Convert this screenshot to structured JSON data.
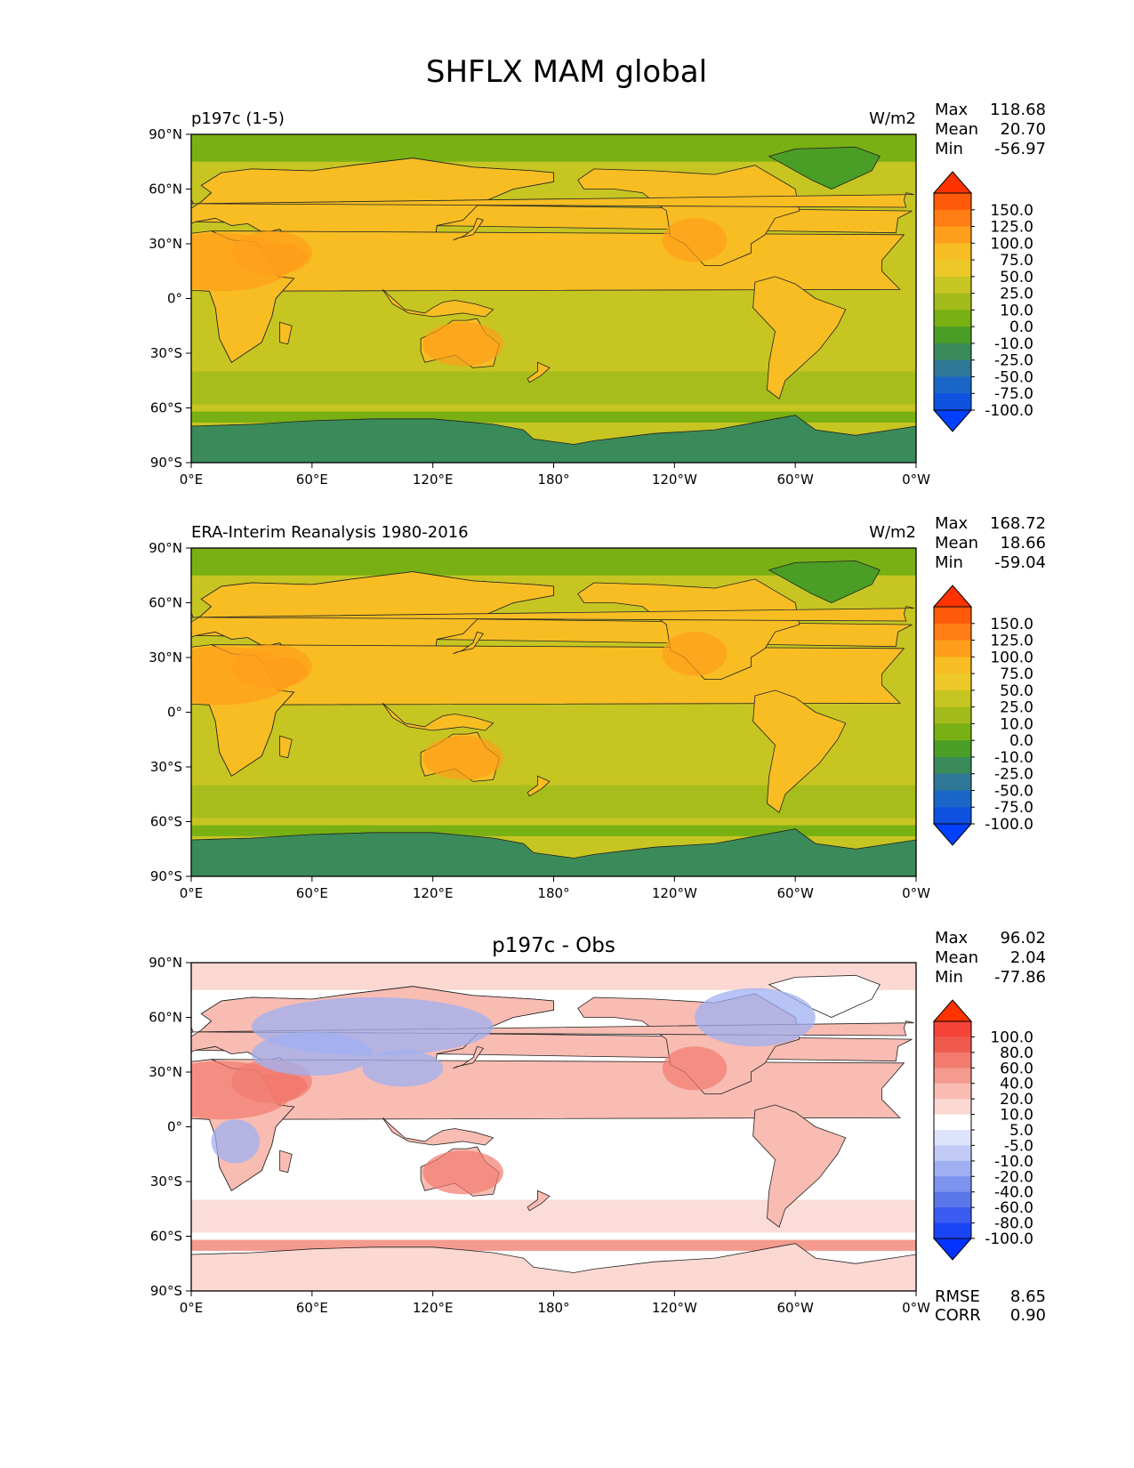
{
  "figure": {
    "title": "SHFLX MAM global"
  },
  "panels": [
    {
      "id": "test",
      "left_label": "p197c (1-5)",
      "center_title": "",
      "units": "W/m2",
      "stats": [
        {
          "label": "Max",
          "value": "118.68"
        },
        {
          "label": "Mean",
          "value": "20.70"
        },
        {
          "label": "Min",
          "value": "-56.97"
        }
      ],
      "extra_stats": [],
      "colorbar": {
        "labels": [
          "150.0",
          "125.0",
          "100.0",
          "75.0",
          "50.0",
          "25.0",
          "10.0",
          "0.0",
          "-10.0",
          "-25.0",
          "-50.0",
          "-75.0",
          "-100.0"
        ],
        "colors": [
          "#ff3300",
          "#ff5a0a",
          "#ff7d12",
          "#ff9e1a",
          "#f7bd23",
          "#ecc928",
          "#c7c522",
          "#a3bb1b",
          "#79b014",
          "#4a9e25",
          "#3a8a5a",
          "#2f7797",
          "#1a66c8",
          "#0f52e0",
          "#0040ff"
        ]
      },
      "map": {
        "ocean": "#c7c522",
        "land": "#f7bd23",
        "land_hot": "#ff9e1a",
        "arctic": "#79b014",
        "greenland": "#4a9e25",
        "southern_ocean": "#79b014",
        "antarctica": "#3a8a5a",
        "band": "#a3bb1b"
      }
    },
    {
      "id": "ref",
      "left_label": "ERA-Interim Reanalysis 1980-2016",
      "center_title": "",
      "units": "W/m2",
      "stats": [
        {
          "label": "Max",
          "value": "168.72"
        },
        {
          "label": "Mean",
          "value": "18.66"
        },
        {
          "label": "Min",
          "value": "-59.04"
        }
      ],
      "extra_stats": [],
      "colorbar": {
        "labels": [
          "150.0",
          "125.0",
          "100.0",
          "75.0",
          "50.0",
          "25.0",
          "10.0",
          "0.0",
          "-10.0",
          "-25.0",
          "-50.0",
          "-75.0",
          "-100.0"
        ],
        "colors": [
          "#ff3300",
          "#ff5a0a",
          "#ff7d12",
          "#ff9e1a",
          "#f7bd23",
          "#ecc928",
          "#c7c522",
          "#a3bb1b",
          "#79b014",
          "#4a9e25",
          "#3a8a5a",
          "#2f7797",
          "#1a66c8",
          "#0f52e0",
          "#0040ff"
        ]
      },
      "map": {
        "ocean": "#c7c522",
        "land": "#f7bd23",
        "land_hot": "#ff9e1a",
        "arctic": "#79b014",
        "greenland": "#4a9e25",
        "southern_ocean": "#79b014",
        "antarctica": "#3a8a5a",
        "band": "#a3bb1b"
      }
    },
    {
      "id": "diff",
      "left_label": "",
      "center_title": "p197c - Obs",
      "units": "",
      "stats": [
        {
          "label": "Max",
          "value": "96.02"
        },
        {
          "label": "Mean",
          "value": "2.04"
        },
        {
          "label": "Min",
          "value": "-77.86"
        }
      ],
      "extra_stats": [
        {
          "label": "RMSE",
          "value": "8.65"
        },
        {
          "label": "CORR",
          "value": "0.90"
        }
      ],
      "colorbar": {
        "labels": [
          "100.0",
          "80.0",
          "60.0",
          "40.0",
          "20.0",
          "10.0",
          "5.0",
          "-5.0",
          "-10.0",
          "-20.0",
          "-40.0",
          "-60.0",
          "-80.0",
          "-100.0"
        ],
        "colors": [
          "#ff3300",
          "#f6433a",
          "#f05a4f",
          "#f27a6e",
          "#f49a8e",
          "#f8bcb2",
          "#fbd8d2",
          "#ffffff",
          "#dde3fb",
          "#c1cbf6",
          "#9fb0f2",
          "#7d93ee",
          "#5a77ea",
          "#3a5cf0",
          "#1a45f5",
          "#0033ff"
        ]
      },
      "map": {
        "ocean": "#ffffff",
        "land": "#f8bcb2",
        "land_hot": "#f27a6e",
        "arctic": "#fbd8d2",
        "greenland": "#ffffff",
        "southern_ocean": "#f49a8e",
        "antarctica": "#fbd8d2",
        "band": "#fbd8d2",
        "cool": "#9fb0f2"
      }
    }
  ],
  "axes": {
    "x_ticks": [
      "0°E",
      "60°E",
      "120°E",
      "180°",
      "120°W",
      "60°W",
      "0°W"
    ],
    "y_ticks": [
      "90°N",
      "60°N",
      "30°N",
      "0°",
      "30°S",
      "60°S",
      "90°S"
    ]
  }
}
